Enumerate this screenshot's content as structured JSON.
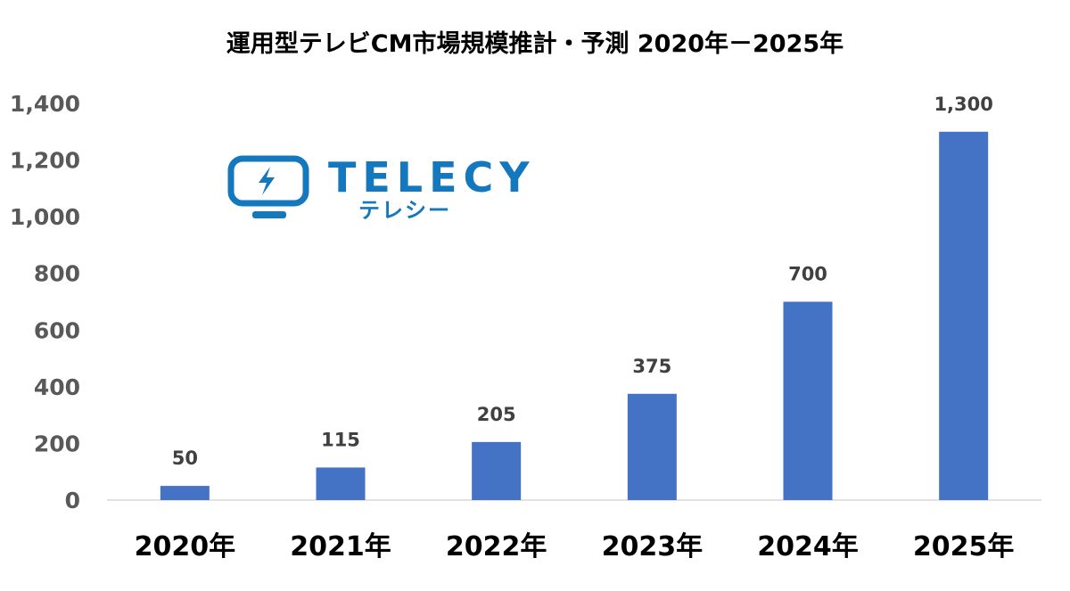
{
  "chart_data": {
    "type": "bar",
    "title": "運用型テレビCM市場規模推計・予測 2020年－2025年",
    "categories": [
      "2020年",
      "2021年",
      "2022年",
      "2023年",
      "2024年",
      "2025年"
    ],
    "values": [
      50,
      115,
      205,
      375,
      700,
      1300
    ],
    "data_labels": [
      "50",
      "115",
      "205",
      "375",
      "700",
      "1,300"
    ],
    "ylim": [
      0,
      1400
    ],
    "yticks": [
      0,
      200,
      400,
      600,
      800,
      1000,
      1200,
      1400
    ],
    "ytick_labels": [
      "0",
      "200",
      "400",
      "600",
      "800",
      "1,000",
      "1,200",
      "1,400"
    ],
    "grid": false,
    "bar_color": "#4472c4"
  },
  "logo": {
    "wordmark": "TELECY",
    "kana": "テレシー",
    "color": "#1478be",
    "icon": "tv-lightning-icon"
  }
}
